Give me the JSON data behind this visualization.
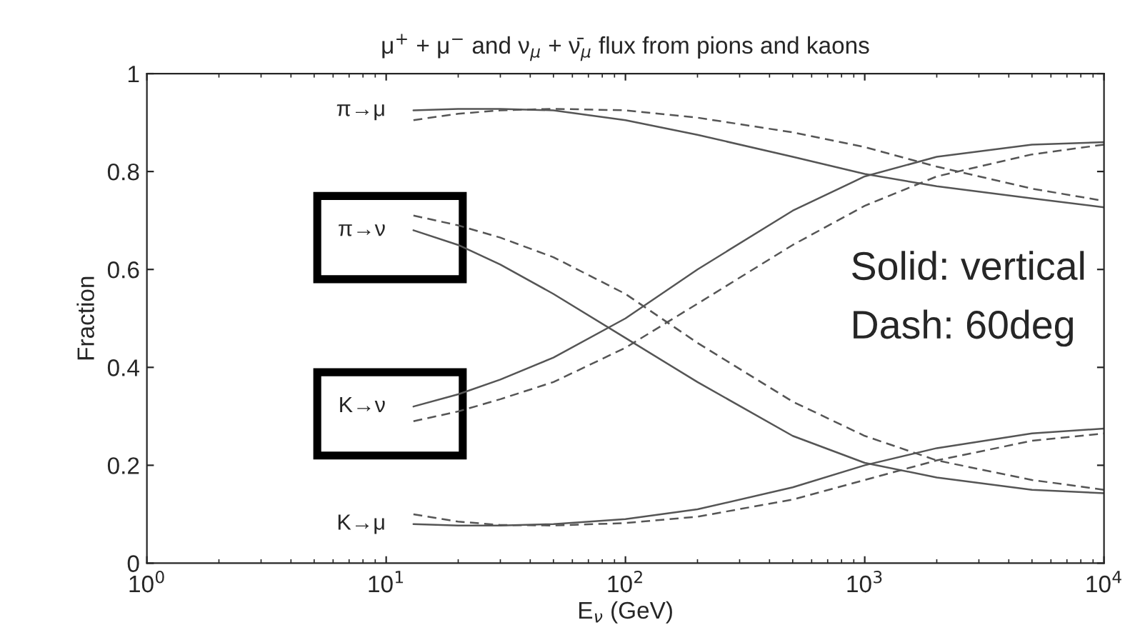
{
  "chart_data": {
    "type": "line",
    "title": "μ$^{+}$ + μ$^{−}$ and ν$_{μ}$ + ν̄$_{μ}$ flux from pions and kaons",
    "xlabel": "E$_{ν}$ (GeV)",
    "ylabel": "Fraction",
    "x": [
      13,
      20,
      30,
      50,
      100,
      200,
      500,
      1000,
      2000,
      5000,
      10000
    ],
    "series": [
      {
        "name": "π→μ",
        "color": "#555555",
        "line_style": "solid",
        "values": [
          0.925,
          0.928,
          0.928,
          0.925,
          0.905,
          0.875,
          0.83,
          0.795,
          0.77,
          0.745,
          0.727
        ]
      },
      {
        "color": "#555555",
        "line_style": "dashed",
        "values": [
          0.905,
          0.918,
          0.925,
          0.928,
          0.925,
          0.91,
          0.88,
          0.85,
          0.81,
          0.765,
          0.74
        ]
      },
      {
        "name": "π→ν",
        "color": "#555555",
        "line_style": "solid",
        "values": [
          0.68,
          0.65,
          0.61,
          0.55,
          0.46,
          0.37,
          0.26,
          0.205,
          0.175,
          0.15,
          0.143
        ]
      },
      {
        "color": "#555555",
        "line_style": "dashed",
        "values": [
          0.71,
          0.69,
          0.665,
          0.625,
          0.55,
          0.45,
          0.33,
          0.26,
          0.21,
          0.17,
          0.15
        ]
      },
      {
        "name": "K→ν",
        "color": "#555555",
        "line_style": "solid",
        "values": [
          0.32,
          0.345,
          0.375,
          0.42,
          0.5,
          0.6,
          0.72,
          0.79,
          0.83,
          0.855,
          0.86
        ]
      },
      {
        "color": "#555555",
        "line_style": "dashed",
        "values": [
          0.29,
          0.31,
          0.335,
          0.37,
          0.44,
          0.53,
          0.65,
          0.73,
          0.79,
          0.835,
          0.855
        ]
      },
      {
        "name": "K→μ",
        "color": "#555555",
        "line_style": "solid",
        "values": [
          0.08,
          0.077,
          0.077,
          0.08,
          0.09,
          0.11,
          0.155,
          0.2,
          0.235,
          0.265,
          0.275
        ]
      },
      {
        "color": "#555555",
        "line_style": "dashed",
        "values": [
          0.1,
          0.085,
          0.078,
          0.077,
          0.082,
          0.095,
          0.13,
          0.17,
          0.21,
          0.25,
          0.265
        ]
      }
    ],
    "annotations": [
      "Solid: vertical",
      "Dash: 60deg"
    ],
    "log": "x",
    "xlim": [
      1,
      10000
    ],
    "xticks": [
      {
        "value": 1,
        "label": "10$^{0}$"
      },
      {
        "value": 10,
        "label": "10$^{1}$"
      },
      {
        "value": 100,
        "label": "10$^{2}$"
      },
      {
        "value": 1000,
        "label": "10$^{3}$"
      },
      {
        "value": 10000,
        "label": "10$^{4}$"
      }
    ],
    "ylim": [
      0,
      1
    ],
    "yticks": [
      0,
      0.2,
      0.4,
      0.6,
      0.8,
      1
    ],
    "grid": false,
    "legend": false
  }
}
